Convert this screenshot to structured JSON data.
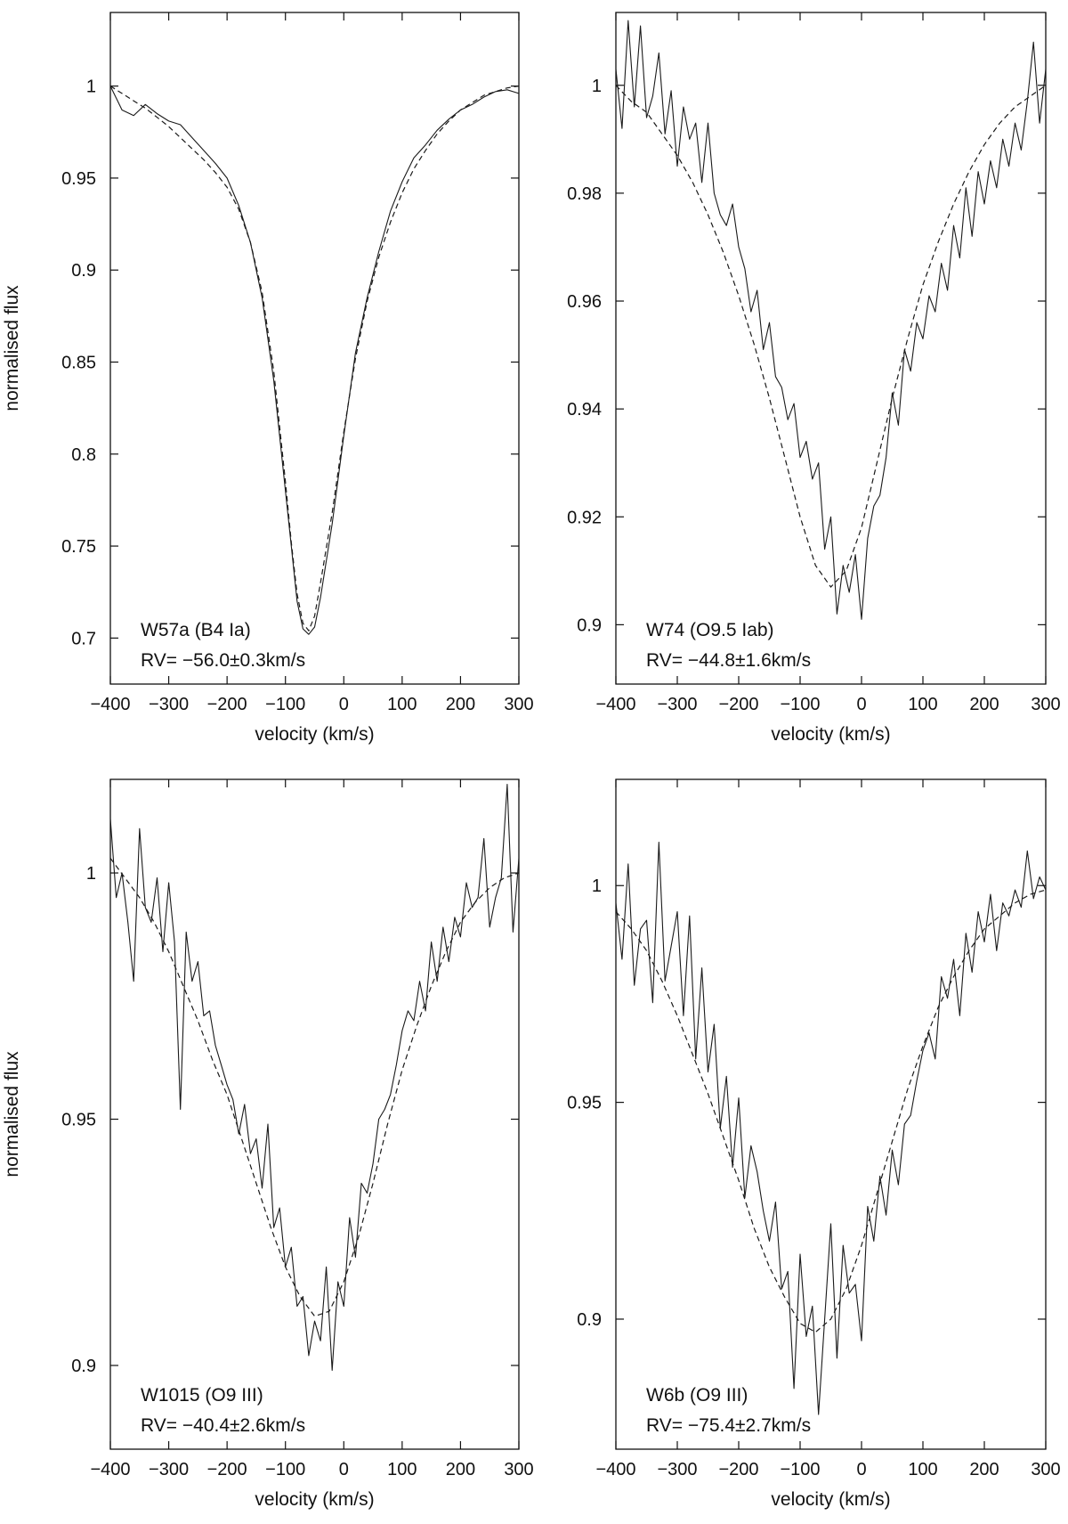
{
  "chart_data": [
    {
      "type": "line",
      "panel": "top-left",
      "xlabel": "velocity (km/s)",
      "ylabel": "normalised flux",
      "xlim": [
        -400,
        300
      ],
      "ylim": [
        0.675,
        1.04
      ],
      "xticks": [
        -400,
        -300,
        -200,
        -100,
        0,
        100,
        200,
        300
      ],
      "xtick_labels": [
        "−400",
        "−300",
        "−200",
        "−100",
        "0",
        "100",
        "200",
        "300"
      ],
      "yticks": [
        0.7,
        0.75,
        0.8,
        0.85,
        0.9,
        0.95,
        1
      ],
      "ytick_labels": [
        "0.7",
        "0.75",
        "0.8",
        "0.85",
        "0.9",
        "0.95",
        "1"
      ],
      "annotations": [
        "W57a (B4 Ia)",
        "RV= −56.0±0.3km/s"
      ],
      "series": [
        {
          "style": "solid",
          "color": "#1a1a1a",
          "x": [
            -400,
            -380,
            -360,
            -340,
            -320,
            -300,
            -280,
            -260,
            -240,
            -220,
            -200,
            -180,
            -160,
            -140,
            -120,
            -100,
            -90,
            -80,
            -70,
            -60,
            -50,
            -40,
            -20,
            0,
            20,
            40,
            60,
            80,
            100,
            120,
            140,
            160,
            180,
            200,
            220,
            240,
            260,
            280,
            300
          ],
          "values": [
            1.0,
            0.987,
            0.984,
            0.99,
            0.985,
            0.981,
            0.979,
            0.972,
            0.965,
            0.958,
            0.95,
            0.935,
            0.915,
            0.885,
            0.84,
            0.78,
            0.75,
            0.72,
            0.705,
            0.702,
            0.706,
            0.722,
            0.762,
            0.81,
            0.855,
            0.885,
            0.91,
            0.932,
            0.948,
            0.961,
            0.968,
            0.976,
            0.982,
            0.987,
            0.99,
            0.994,
            0.997,
            0.998,
            0.996
          ]
        },
        {
          "style": "dashed",
          "color": "#1a1a1a",
          "x": [
            -400,
            -380,
            -360,
            -340,
            -320,
            -300,
            -280,
            -260,
            -240,
            -220,
            -200,
            -180,
            -160,
            -140,
            -120,
            -100,
            -90,
            -80,
            -70,
            -60,
            -50,
            -40,
            -20,
            0,
            20,
            40,
            60,
            80,
            100,
            120,
            140,
            160,
            180,
            200,
            220,
            240,
            260,
            280,
            300
          ],
          "values": [
            1.0,
            0.996,
            0.992,
            0.988,
            0.983,
            0.978,
            0.972,
            0.966,
            0.96,
            0.953,
            0.945,
            0.933,
            0.915,
            0.888,
            0.845,
            0.785,
            0.752,
            0.724,
            0.708,
            0.704,
            0.712,
            0.73,
            0.768,
            0.812,
            0.852,
            0.883,
            0.907,
            0.926,
            0.942,
            0.955,
            0.965,
            0.974,
            0.981,
            0.987,
            0.991,
            0.995,
            0.997,
            0.999,
            1.0
          ]
        }
      ]
    },
    {
      "type": "line",
      "panel": "top-right",
      "xlabel": "velocity (km/s)",
      "ylabel": "",
      "xlim": [
        -400,
        300
      ],
      "ylim": [
        0.889,
        1.0135
      ],
      "xticks": [
        -400,
        -300,
        -200,
        -100,
        0,
        100,
        200,
        300
      ],
      "xtick_labels": [
        "−400",
        "−300",
        "−200",
        "−100",
        "0",
        "100",
        "200",
        "300"
      ],
      "yticks": [
        0.9,
        0.92,
        0.94,
        0.96,
        0.98,
        1
      ],
      "ytick_labels": [
        "0.9",
        "0.92",
        "0.94",
        "0.96",
        "0.98",
        "1"
      ],
      "annotations": [
        "W74 (O9.5 Iab)",
        "RV= −44.8±1.6km/s"
      ],
      "series": [
        {
          "style": "solid",
          "color": "#1a1a1a",
          "x": [
            -400,
            -390,
            -380,
            -370,
            -360,
            -350,
            -340,
            -330,
            -320,
            -310,
            -300,
            -290,
            -280,
            -270,
            -260,
            -250,
            -240,
            -230,
            -220,
            -210,
            -200,
            -190,
            -180,
            -170,
            -160,
            -150,
            -140,
            -130,
            -120,
            -110,
            -100,
            -90,
            -80,
            -70,
            -60,
            -50,
            -40,
            -30,
            -20,
            -10,
            0,
            10,
            20,
            30,
            40,
            50,
            60,
            70,
            80,
            90,
            100,
            110,
            120,
            130,
            140,
            150,
            160,
            170,
            180,
            190,
            200,
            210,
            220,
            230,
            240,
            250,
            260,
            270,
            280,
            290,
            300
          ],
          "values": [
            1.003,
            0.992,
            1.012,
            0.996,
            1.011,
            0.994,
            0.998,
            1.006,
            0.991,
            0.999,
            0.985,
            0.996,
            0.99,
            0.993,
            0.982,
            0.993,
            0.98,
            0.976,
            0.974,
            0.978,
            0.97,
            0.966,
            0.958,
            0.962,
            0.951,
            0.956,
            0.946,
            0.944,
            0.938,
            0.941,
            0.931,
            0.934,
            0.927,
            0.93,
            0.914,
            0.92,
            0.902,
            0.911,
            0.906,
            0.913,
            0.901,
            0.916,
            0.922,
            0.924,
            0.931,
            0.943,
            0.937,
            0.951,
            0.947,
            0.956,
            0.953,
            0.961,
            0.958,
            0.967,
            0.962,
            0.974,
            0.968,
            0.981,
            0.972,
            0.984,
            0.978,
            0.986,
            0.981,
            0.99,
            0.985,
            0.993,
            0.988,
            0.997,
            1.008,
            0.993,
            1.003
          ]
        },
        {
          "style": "dashed",
          "color": "#1a1a1a",
          "x": [
            -400,
            -375,
            -350,
            -325,
            -300,
            -275,
            -250,
            -225,
            -200,
            -175,
            -150,
            -125,
            -100,
            -75,
            -50,
            -25,
            0,
            25,
            50,
            75,
            100,
            125,
            150,
            175,
            200,
            225,
            250,
            275,
            300
          ],
          "values": [
            1.0,
            0.997,
            0.995,
            0.991,
            0.987,
            0.982,
            0.976,
            0.969,
            0.961,
            0.952,
            0.942,
            0.931,
            0.92,
            0.911,
            0.907,
            0.91,
            0.918,
            0.93,
            0.942,
            0.953,
            0.963,
            0.971,
            0.978,
            0.984,
            0.989,
            0.993,
            0.996,
            0.998,
            1.0
          ]
        }
      ]
    },
    {
      "type": "line",
      "panel": "bottom-left",
      "xlabel": "velocity (km/s)",
      "ylabel": "normalised flux",
      "xlim": [
        -400,
        300
      ],
      "ylim": [
        0.883,
        1.019
      ],
      "xticks": [
        -400,
        -300,
        -200,
        -100,
        0,
        100,
        200,
        300
      ],
      "xtick_labels": [
        "−400",
        "−300",
        "−200",
        "−100",
        "0",
        "100",
        "200",
        "300"
      ],
      "yticks": [
        0.9,
        0.95,
        1
      ],
      "ytick_labels": [
        "0.9",
        "0.95",
        "1"
      ],
      "annotations": [
        "W1015 (O9 III)",
        "RV= −40.4±2.6km/s"
      ],
      "series": [
        {
          "style": "solid",
          "color": "#1a1a1a",
          "x": [
            -400,
            -390,
            -380,
            -370,
            -360,
            -350,
            -340,
            -330,
            -320,
            -310,
            -300,
            -290,
            -280,
            -270,
            -260,
            -250,
            -240,
            -230,
            -220,
            -210,
            -200,
            -190,
            -180,
            -170,
            -160,
            -150,
            -140,
            -130,
            -120,
            -110,
            -100,
            -90,
            -80,
            -70,
            -60,
            -50,
            -40,
            -30,
            -20,
            -10,
            0,
            10,
            20,
            30,
            40,
            50,
            60,
            70,
            80,
            90,
            100,
            110,
            120,
            130,
            140,
            150,
            160,
            170,
            180,
            190,
            200,
            210,
            220,
            230,
            240,
            250,
            260,
            270,
            280,
            290,
            300
          ],
          "values": [
            1.011,
            0.995,
            1.0,
            0.99,
            0.978,
            1.009,
            0.993,
            0.99,
            0.999,
            0.984,
            0.998,
            0.986,
            0.952,
            0.988,
            0.978,
            0.982,
            0.971,
            0.972,
            0.965,
            0.961,
            0.957,
            0.954,
            0.947,
            0.953,
            0.943,
            0.946,
            0.936,
            0.949,
            0.928,
            0.932,
            0.92,
            0.924,
            0.912,
            0.914,
            0.902,
            0.909,
            0.905,
            0.92,
            0.899,
            0.917,
            0.912,
            0.93,
            0.922,
            0.937,
            0.935,
            0.941,
            0.95,
            0.952,
            0.955,
            0.961,
            0.968,
            0.972,
            0.97,
            0.978,
            0.972,
            0.986,
            0.978,
            0.989,
            0.982,
            0.991,
            0.987,
            0.998,
            0.993,
            0.995,
            1.007,
            0.989,
            0.995,
            0.999,
            1.018,
            0.988,
            1.003
          ]
        },
        {
          "style": "dashed",
          "color": "#1a1a1a",
          "x": [
            -400,
            -375,
            -350,
            -325,
            -300,
            -275,
            -250,
            -225,
            -200,
            -175,
            -150,
            -125,
            -100,
            -75,
            -50,
            -25,
            0,
            25,
            50,
            75,
            100,
            125,
            150,
            175,
            200,
            225,
            250,
            275,
            300
          ],
          "values": [
            1.003,
            0.999,
            0.995,
            0.99,
            0.984,
            0.977,
            0.97,
            0.962,
            0.955,
            0.946,
            0.937,
            0.928,
            0.92,
            0.914,
            0.91,
            0.911,
            0.917,
            0.926,
            0.937,
            0.949,
            0.96,
            0.969,
            0.977,
            0.984,
            0.99,
            0.994,
            0.997,
            0.999,
            1.0
          ]
        }
      ]
    },
    {
      "type": "line",
      "panel": "bottom-right",
      "xlabel": "velocity (km/s)",
      "ylabel": "",
      "xlim": [
        -400,
        300
      ],
      "ylim": [
        0.87,
        1.0245
      ],
      "xticks": [
        -400,
        -300,
        -200,
        -100,
        0,
        100,
        200,
        300
      ],
      "xtick_labels": [
        "−400",
        "−300",
        "−200",
        "−100",
        "0",
        "100",
        "200",
        "300"
      ],
      "yticks": [
        0.9,
        0.95,
        1
      ],
      "ytick_labels": [
        "0.9",
        "0.95",
        "1"
      ],
      "annotations": [
        "W6b (O9 III)",
        "RV= −75.4±2.7km/s"
      ],
      "series": [
        {
          "style": "solid",
          "color": "#1a1a1a",
          "x": [
            -400,
            -390,
            -380,
            -370,
            -360,
            -350,
            -340,
            -330,
            -320,
            -310,
            -300,
            -290,
            -280,
            -270,
            -260,
            -250,
            -240,
            -230,
            -220,
            -210,
            -200,
            -190,
            -180,
            -170,
            -160,
            -150,
            -140,
            -130,
            -120,
            -110,
            -100,
            -90,
            -80,
            -70,
            -60,
            -50,
            -40,
            -30,
            -20,
            -10,
            0,
            10,
            20,
            30,
            40,
            50,
            60,
            70,
            80,
            90,
            100,
            110,
            120,
            130,
            140,
            150,
            160,
            170,
            180,
            190,
            200,
            210,
            220,
            230,
            240,
            250,
            260,
            270,
            280,
            290,
            300
          ],
          "values": [
            0.996,
            0.983,
            1.005,
            0.977,
            0.99,
            0.992,
            0.973,
            1.01,
            0.978,
            0.986,
            0.994,
            0.97,
            0.993,
            0.96,
            0.981,
            0.957,
            0.968,
            0.944,
            0.956,
            0.935,
            0.951,
            0.928,
            0.94,
            0.934,
            0.925,
            0.918,
            0.927,
            0.907,
            0.911,
            0.884,
            0.915,
            0.896,
            0.903,
            0.878,
            0.9,
            0.922,
            0.891,
            0.917,
            0.906,
            0.908,
            0.895,
            0.926,
            0.918,
            0.933,
            0.924,
            0.939,
            0.931,
            0.945,
            0.947,
            0.955,
            0.962,
            0.966,
            0.96,
            0.979,
            0.974,
            0.983,
            0.97,
            0.989,
            0.98,
            0.994,
            0.987,
            0.998,
            0.985,
            0.996,
            0.993,
            0.999,
            0.995,
            1.008,
            0.997,
            1.002,
            0.999
          ]
        },
        {
          "style": "dashed",
          "color": "#1a1a1a",
          "x": [
            -400,
            -375,
            -350,
            -325,
            -300,
            -275,
            -250,
            -225,
            -200,
            -175,
            -150,
            -125,
            -100,
            -75,
            -50,
            -25,
            0,
            25,
            50,
            75,
            100,
            125,
            150,
            175,
            200,
            225,
            250,
            275,
            300
          ],
          "values": [
            0.994,
            0.99,
            0.985,
            0.978,
            0.97,
            0.961,
            0.952,
            0.942,
            0.932,
            0.921,
            0.912,
            0.905,
            0.899,
            0.897,
            0.9,
            0.907,
            0.917,
            0.929,
            0.941,
            0.953,
            0.963,
            0.972,
            0.979,
            0.985,
            0.99,
            0.993,
            0.996,
            0.998,
            0.999
          ]
        }
      ]
    }
  ]
}
